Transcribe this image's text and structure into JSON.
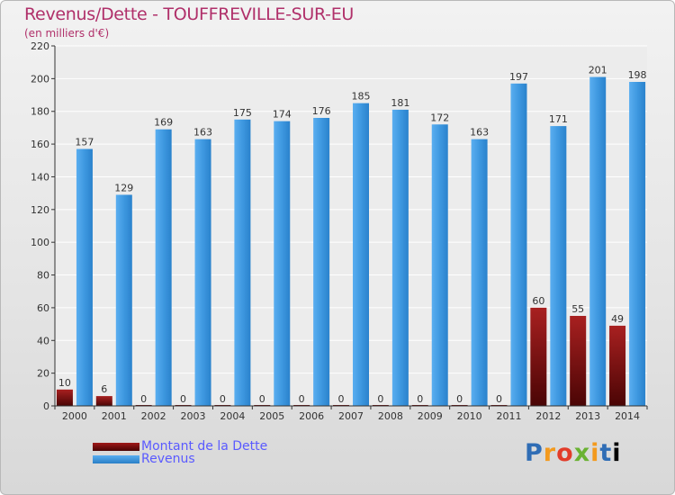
{
  "chart_data": {
    "type": "bar",
    "title": "Revenus/Dette - TOUFFREVILLE-SUR-EU",
    "subtitle": "(en milliers d'€)",
    "categories": [
      "2000",
      "2001",
      "2002",
      "2003",
      "2004",
      "2005",
      "2006",
      "2007",
      "2008",
      "2009",
      "2010",
      "2011",
      "2012",
      "2013",
      "2014"
    ],
    "series": [
      {
        "name": "Montant de la Dette",
        "values": [
          10,
          6,
          0,
          0,
          0,
          0,
          0,
          0,
          0,
          0,
          0,
          0,
          60,
          55,
          49
        ],
        "color": "#7a0e0e"
      },
      {
        "name": "Revenus",
        "values": [
          157,
          129,
          169,
          163,
          175,
          174,
          176,
          185,
          181,
          172,
          163,
          197,
          171,
          201,
          198
        ],
        "color": "#3d97dd"
      }
    ],
    "ylim": [
      0,
      220
    ],
    "yticks": [
      0,
      20,
      40,
      60,
      80,
      100,
      120,
      140,
      160,
      180,
      200,
      220
    ],
    "grid": true,
    "legend": "bottom-left"
  },
  "logo": {
    "letters": [
      "P",
      "r",
      "o",
      "x",
      "i",
      "t",
      "i"
    ]
  }
}
